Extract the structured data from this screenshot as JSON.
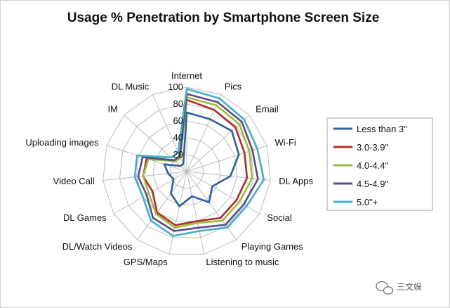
{
  "chart_data": {
    "type": "radar",
    "title": "Usage % Penetration by Smartphone Screen Size",
    "axes": [
      "Internet",
      "Pics",
      "Email",
      "Wi-Fi",
      "DL Apps",
      "Social",
      "Playing Games",
      "Listening to music",
      "GPS/Maps",
      "DL/Watch Videos",
      "DL Games",
      "Video Call",
      "Uploading images",
      "IM",
      "DL Music"
    ],
    "r_ticks": [
      20,
      40,
      60,
      80,
      100
    ],
    "r_range": [
      0,
      100
    ],
    "grid": true,
    "legend_position": "right",
    "series": [
      {
        "name": "Less than 3\"",
        "color": "#2e5fa0",
        "values": [
          70,
          68,
          72,
          65,
          52,
          35,
          45,
          30,
          42,
          32,
          18,
          22,
          28,
          10,
          10
        ]
      },
      {
        "name": "3.0-3.9\"",
        "color": "#b22b2b",
        "values": [
          85,
          80,
          78,
          72,
          72,
          68,
          68,
          60,
          65,
          60,
          47,
          52,
          50,
          20,
          20
        ]
      },
      {
        "name": "4.0-4.4\"",
        "color": "#9dbb3b",
        "values": [
          88,
          86,
          84,
          78,
          78,
          72,
          72,
          62,
          68,
          62,
          52,
          52,
          48,
          18,
          18
        ]
      },
      {
        "name": "4.5-4.9\"",
        "color": "#5a4a8a",
        "values": [
          92,
          90,
          88,
          82,
          85,
          78,
          78,
          68,
          72,
          68,
          55,
          58,
          55,
          20,
          20
        ]
      },
      {
        "name": "5.0\"+",
        "color": "#3fb0c8",
        "values": [
          98,
          95,
          92,
          88,
          92,
          82,
          82,
          72,
          78,
          72,
          60,
          62,
          62,
          25,
          25
        ]
      }
    ]
  },
  "watermark": {
    "text": "三文娱",
    "icon": "wechat-icon"
  }
}
